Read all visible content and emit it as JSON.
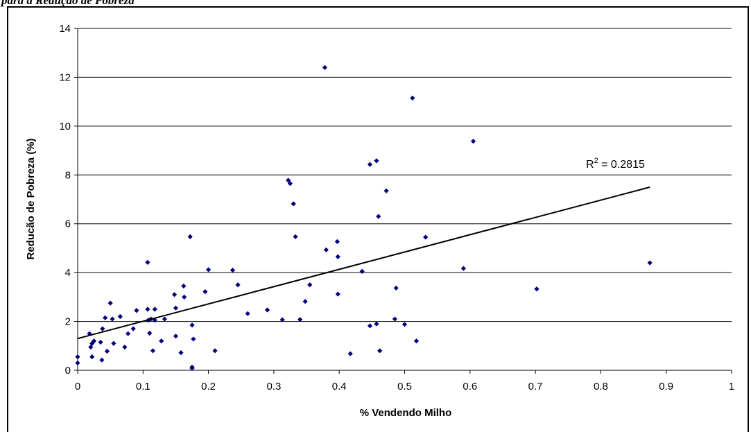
{
  "header": {
    "text": "para a Redução de Pobreza"
  },
  "chart_data": {
    "type": "scatter",
    "title": "",
    "xlabel": "% Vendendo Milho",
    "ylabel": "Reducão de Pobreza (%)",
    "xlim": [
      0,
      1
    ],
    "ylim": [
      0,
      14
    ],
    "xticks": [
      "0",
      "0.1",
      "0.2",
      "0.3",
      "0.4",
      "0.5",
      "0.6",
      "0.7",
      "0.8",
      "0.9",
      "1"
    ],
    "yticks": [
      "0",
      "2",
      "4",
      "6",
      "8",
      "10",
      "12",
      "14"
    ],
    "grid": "horizontal",
    "marker_color": "#00007a",
    "trendline": {
      "type": "linear",
      "x": [
        0,
        0.875
      ],
      "y": [
        1.3,
        7.5
      ],
      "r2_base": "R",
      "r2_sup": "2",
      "r2_value": " = 0.2815"
    },
    "points": [
      [
        0.0,
        0.55
      ],
      [
        0.0,
        0.3
      ],
      [
        0.018,
        1.5
      ],
      [
        0.02,
        0.95
      ],
      [
        0.022,
        1.1
      ],
      [
        0.025,
        1.2
      ],
      [
        0.022,
        0.55
      ],
      [
        0.035,
        1.15
      ],
      [
        0.037,
        0.42
      ],
      [
        0.038,
        1.7
      ],
      [
        0.042,
        2.15
      ],
      [
        0.045,
        0.78
      ],
      [
        0.05,
        2.75
      ],
      [
        0.053,
        2.1
      ],
      [
        0.055,
        1.1
      ],
      [
        0.065,
        2.2
      ],
      [
        0.072,
        0.95
      ],
      [
        0.077,
        1.5
      ],
      [
        0.085,
        1.7
      ],
      [
        0.09,
        2.45
      ],
      [
        0.107,
        4.42
      ],
      [
        0.107,
        2.5
      ],
      [
        0.108,
        2.05
      ],
      [
        0.11,
        1.52
      ],
      [
        0.112,
        2.1
      ],
      [
        0.115,
        0.8
      ],
      [
        0.118,
        2.5
      ],
      [
        0.118,
        2.05
      ],
      [
        0.128,
        1.2
      ],
      [
        0.133,
        2.1
      ],
      [
        0.148,
        3.1
      ],
      [
        0.15,
        2.55
      ],
      [
        0.15,
        1.4
      ],
      [
        0.158,
        0.72
      ],
      [
        0.162,
        3.45
      ],
      [
        0.163,
        3.0
      ],
      [
        0.172,
        5.47
      ],
      [
        0.175,
        1.85
      ],
      [
        0.175,
        0.13
      ],
      [
        0.175,
        0.08
      ],
      [
        0.177,
        1.28
      ],
      [
        0.195,
        3.22
      ],
      [
        0.2,
        4.12
      ],
      [
        0.21,
        0.8
      ],
      [
        0.237,
        4.1
      ],
      [
        0.245,
        3.5
      ],
      [
        0.26,
        2.32
      ],
      [
        0.29,
        2.47
      ],
      [
        0.313,
        2.07
      ],
      [
        0.322,
        7.78
      ],
      [
        0.325,
        7.65
      ],
      [
        0.33,
        6.82
      ],
      [
        0.333,
        5.47
      ],
      [
        0.34,
        2.08
      ],
      [
        0.348,
        2.82
      ],
      [
        0.355,
        3.5
      ],
      [
        0.378,
        12.4
      ],
      [
        0.38,
        4.93
      ],
      [
        0.397,
        5.27
      ],
      [
        0.398,
        4.65
      ],
      [
        0.398,
        3.12
      ],
      [
        0.417,
        0.68
      ],
      [
        0.435,
        4.05
      ],
      [
        0.447,
        8.43
      ],
      [
        0.447,
        1.82
      ],
      [
        0.457,
        8.58
      ],
      [
        0.457,
        1.9
      ],
      [
        0.46,
        6.3
      ],
      [
        0.462,
        0.8
      ],
      [
        0.472,
        7.35
      ],
      [
        0.485,
        2.1
      ],
      [
        0.487,
        3.37
      ],
      [
        0.5,
        1.88
      ],
      [
        0.512,
        11.15
      ],
      [
        0.518,
        1.2
      ],
      [
        0.532,
        5.45
      ],
      [
        0.59,
        4.17
      ],
      [
        0.605,
        9.38
      ],
      [
        0.702,
        3.33
      ],
      [
        0.875,
        4.4
      ]
    ]
  }
}
